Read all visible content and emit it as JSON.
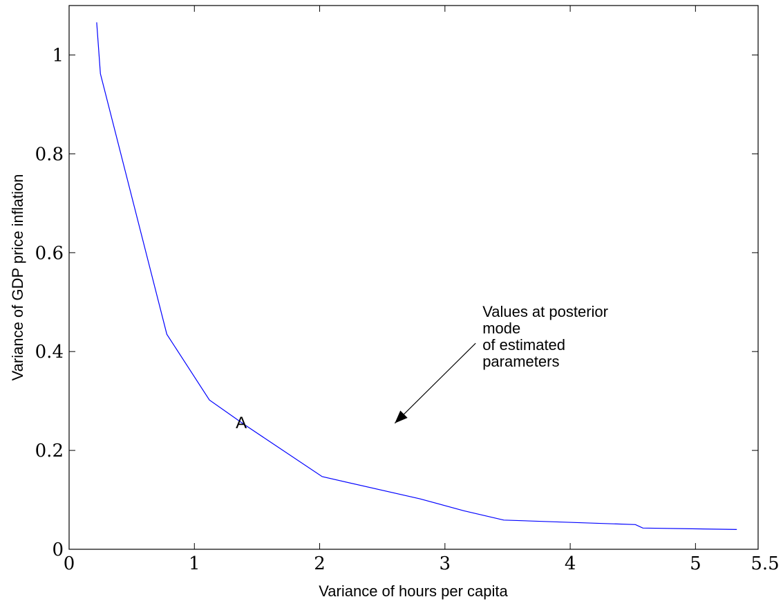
{
  "chart_data": {
    "type": "line",
    "title": "",
    "xlabel": "Variance of hours per capita",
    "ylabel": "Variance of GDP price inflation",
    "xlim": [
      0,
      5.5
    ],
    "ylim": [
      0,
      1.1
    ],
    "xticks": [
      0,
      1,
      2,
      3,
      4,
      5,
      5.5
    ],
    "xtick_labels": [
      "0",
      "1",
      "2",
      "3",
      "4",
      "5",
      "5.5"
    ],
    "yticks": [
      0,
      0.2,
      0.4,
      0.6,
      0.8,
      1
    ],
    "ytick_labels": [
      "0",
      "0.2",
      "0.4",
      "0.6",
      "0.8",
      "1"
    ],
    "grid": false,
    "series": [
      {
        "color": "#0000ff",
        "x": [
          0.22,
          0.25,
          0.78,
          1.12,
          1.4,
          2.02,
          2.8,
          3.15,
          3.47,
          4.52,
          4.58,
          5.33
        ],
        "y": [
          1.066,
          0.962,
          0.435,
          0.302,
          0.252,
          0.147,
          0.102,
          0.078,
          0.059,
          0.05,
          0.043,
          0.04
        ]
      }
    ],
    "annotations": [
      {
        "text": "A",
        "x": 1.33,
        "y": 0.245
      },
      {
        "lines": [
          "Values at posterior",
          "mode",
          "of estimated",
          "parameters"
        ],
        "x": 3.3,
        "y": 0.47,
        "arrow_to": [
          2.6,
          0.255
        ]
      }
    ]
  }
}
